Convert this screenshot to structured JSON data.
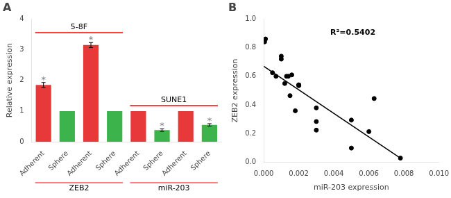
{
  "chart_data": [
    {
      "type": "bar",
      "title": "A",
      "categories": [
        "Adherent",
        "Sphere",
        "Adherent",
        "Sphere",
        "Adherent",
        "Sphere",
        "Adherent",
        "Sphere"
      ],
      "values": [
        1.85,
        1.0,
        3.15,
        1.0,
        1.0,
        0.38,
        1.0,
        0.55
      ],
      "errors": [
        0.08,
        0.0,
        0.08,
        0.0,
        0.0,
        0.04,
        0.0,
        0.04
      ],
      "colors": [
        "#e8393a",
        "#3cb44b",
        "#e8393a",
        "#3cb44b",
        "#e8393a",
        "#3cb44b",
        "#e8393a",
        "#3cb44b"
      ],
      "ylabel": "Relative expression",
      "ylim": [
        0,
        4
      ],
      "yticks": [
        0,
        1,
        2,
        3,
        4
      ],
      "grid": false,
      "annotations": [
        {
          "text": "*",
          "index": 0
        },
        {
          "text": "*",
          "index": 2
        },
        {
          "text": "*",
          "index": 5
        },
        {
          "text": "*",
          "index": 7
        }
      ],
      "groups": [
        {
          "text": "ZEB2",
          "first": 0,
          "last": 3
        },
        {
          "text": "miR-203",
          "first": 4,
          "last": 7
        }
      ],
      "brackets": [
        {
          "text": "5-8F",
          "first": 0,
          "last": 3,
          "y": 3.55
        },
        {
          "text": "SUNE1",
          "first": 4,
          "last": 7,
          "y": 1.18
        }
      ]
    },
    {
      "type": "scatter",
      "title": "B",
      "xlabel": "miR-203 expression",
      "ylabel": "ZEB2 expression",
      "series": [
        {
          "type": "scatter",
          "color": "black",
          "x": [
            5e-05,
            0.0001,
            0.0005,
            0.0007,
            0.001,
            0.001,
            0.0012,
            0.0013,
            0.0014,
            0.0015,
            0.0016,
            0.0018,
            0.002,
            0.002,
            0.002,
            0.003,
            0.003,
            0.003,
            0.005,
            0.005,
            0.006,
            0.0063,
            0.0078
          ],
          "values": [
            0.84,
            0.86,
            0.625,
            0.6,
            0.72,
            0.74,
            0.55,
            0.6,
            0.6,
            0.465,
            0.61,
            0.36,
            0.535,
            0.54,
            0.54,
            0.225,
            0.38,
            0.285,
            0.295,
            0.1,
            0.215,
            0.445,
            0.03
          ]
        },
        {
          "type": "line",
          "color": "black",
          "x": [
            0.0,
            0.0078
          ],
          "values": [
            0.67,
            0.03
          ]
        }
      ],
      "xlim": [
        0.0,
        0.01
      ],
      "xticks": [
        {
          "value": 0,
          "label": "0.000"
        },
        {
          "value": 0.002,
          "label": "0.002"
        },
        {
          "value": 0.004,
          "label": "0.004"
        },
        {
          "value": 0.006,
          "label": "0.006"
        },
        {
          "value": 0.008,
          "label": "0.008"
        },
        {
          "value": 0.01,
          "label": "0.010"
        }
      ],
      "ylim": [
        0.0,
        1.0
      ],
      "yticks": [
        {
          "value": 0,
          "label": "0.0"
        },
        0.2,
        0.4,
        0.6,
        0.8,
        {
          "value": 1,
          "label": "1.0"
        }
      ],
      "grid": false,
      "annotations": [
        {
          "text": "R²=0.5402",
          "x": 0.0038,
          "y": 0.93
        }
      ]
    }
  ]
}
